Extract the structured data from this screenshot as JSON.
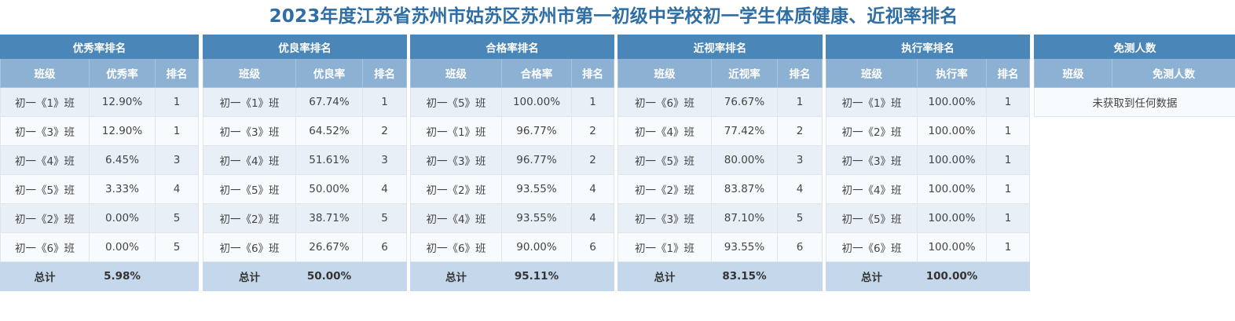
{
  "title": "2023年度江苏省苏州市姑苏区苏州市第一初级中学校初一学生体质健康、近视率排名",
  "total_label": "总计",
  "tables": [
    {
      "title": "优秀率排名",
      "columns": [
        "班级",
        "优秀率",
        "排名"
      ],
      "rows": [
        [
          "初一《1》班",
          "12.90%",
          "1"
        ],
        [
          "初一《3》班",
          "12.90%",
          "1"
        ],
        [
          "初一《4》班",
          "6.45%",
          "3"
        ],
        [
          "初一《5》班",
          "3.33%",
          "4"
        ],
        [
          "初一《2》班",
          "0.00%",
          "5"
        ],
        [
          "初一《6》班",
          "0.00%",
          "5"
        ]
      ],
      "total": "5.98%"
    },
    {
      "title": "优良率排名",
      "columns": [
        "班级",
        "优良率",
        "排名"
      ],
      "rows": [
        [
          "初一《1》班",
          "67.74%",
          "1"
        ],
        [
          "初一《3》班",
          "64.52%",
          "2"
        ],
        [
          "初一《4》班",
          "51.61%",
          "3"
        ],
        [
          "初一《5》班",
          "50.00%",
          "4"
        ],
        [
          "初一《2》班",
          "38.71%",
          "5"
        ],
        [
          "初一《6》班",
          "26.67%",
          "6"
        ]
      ],
      "total": "50.00%"
    },
    {
      "title": "合格率排名",
      "columns": [
        "班级",
        "合格率",
        "排名"
      ],
      "rows": [
        [
          "初一《5》班",
          "100.00%",
          "1"
        ],
        [
          "初一《1》班",
          "96.77%",
          "2"
        ],
        [
          "初一《3》班",
          "96.77%",
          "2"
        ],
        [
          "初一《2》班",
          "93.55%",
          "4"
        ],
        [
          "初一《4》班",
          "93.55%",
          "4"
        ],
        [
          "初一《6》班",
          "90.00%",
          "6"
        ]
      ],
      "total": "95.11%"
    },
    {
      "title": "近视率排名",
      "columns": [
        "班级",
        "近视率",
        "排名"
      ],
      "rows": [
        [
          "初一《6》班",
          "76.67%",
          "1"
        ],
        [
          "初一《4》班",
          "77.42%",
          "2"
        ],
        [
          "初一《5》班",
          "80.00%",
          "3"
        ],
        [
          "初一《2》班",
          "83.87%",
          "4"
        ],
        [
          "初一《3》班",
          "87.10%",
          "5"
        ],
        [
          "初一《1》班",
          "93.55%",
          "6"
        ]
      ],
      "total": "83.15%"
    },
    {
      "title": "执行率排名",
      "columns": [
        "班级",
        "执行率",
        "排名"
      ],
      "rows": [
        [
          "初一《1》班",
          "100.00%",
          "1"
        ],
        [
          "初一《2》班",
          "100.00%",
          "1"
        ],
        [
          "初一《3》班",
          "100.00%",
          "1"
        ],
        [
          "初一《4》班",
          "100.00%",
          "1"
        ],
        [
          "初一《5》班",
          "100.00%",
          "1"
        ],
        [
          "初一《6》班",
          "100.00%",
          "1"
        ]
      ],
      "total": "100.00%"
    }
  ],
  "exempt_table": {
    "title": "免测人数",
    "columns": [
      "班级",
      "免测人数"
    ],
    "empty_message": "未获取到任何数据"
  }
}
